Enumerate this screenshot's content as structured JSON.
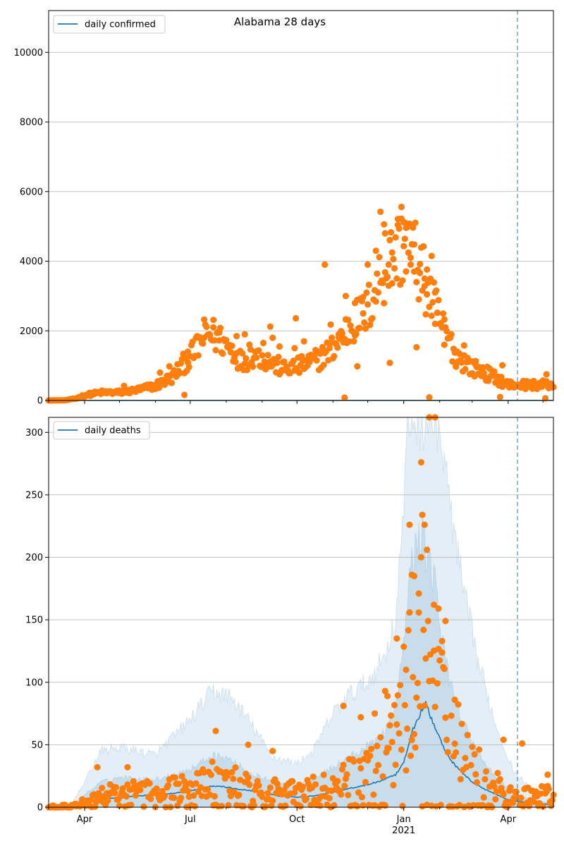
{
  "title": "Alabama 28 days",
  "x_axis": {
    "type": "date",
    "range": [
      "2020-03-01",
      "2021-05-10"
    ],
    "ticks": [
      {
        "date": "2020-04-01",
        "label": "Apr"
      },
      {
        "date": "2020-07-01",
        "label": "Jul"
      },
      {
        "date": "2020-10-01",
        "label": "Oct"
      },
      {
        "date": "2021-01-01",
        "label": "Jan",
        "sublabel": "2021"
      },
      {
        "date": "2021-04-01",
        "label": "Apr"
      }
    ],
    "minor_ticks_monthly": true
  },
  "colors": {
    "line": "#1f77b4",
    "points": "#ff7f0e",
    "band": "#1f77b4",
    "vline": "#1f77b4",
    "grid": "#b0b0b0"
  },
  "chart_data": [
    {
      "type": "scatter",
      "name": "confirmed",
      "legend": {
        "label": "daily confirmed",
        "placement": "upper-left"
      },
      "ylim": [
        0,
        11200
      ],
      "yticks": [
        0,
        2000,
        4000,
        6000,
        8000,
        10000
      ],
      "grid": "y",
      "vline_date": "2021-04-09",
      "line_series": {
        "name": "daily confirmed",
        "values_note": "",
        "keypoints": [
          [
            "2020-03-01",
            0
          ],
          [
            "2021-05-10",
            0
          ]
        ]
      },
      "point_keypoints": [
        [
          "2020-03-01",
          0
        ],
        [
          "2020-03-15",
          5
        ],
        [
          "2020-03-25",
          60
        ],
        [
          "2020-04-01",
          150
        ],
        [
          "2020-04-15",
          230
        ],
        [
          "2020-05-01",
          230
        ],
        [
          "2020-05-15",
          290
        ],
        [
          "2020-06-01",
          420
        ],
        [
          "2020-06-15",
          650
        ],
        [
          "2020-06-25",
          1050
        ],
        [
          "2020-07-05",
          1400
        ],
        [
          "2020-07-15",
          1950
        ],
        [
          "2020-07-25",
          1800
        ],
        [
          "2020-08-05",
          1500
        ],
        [
          "2020-08-15",
          1100
        ],
        [
          "2020-08-25",
          1350
        ],
        [
          "2020-09-05",
          1150
        ],
        [
          "2020-09-20",
          900
        ],
        [
          "2020-10-05",
          1000
        ],
        [
          "2020-10-20",
          1200
        ],
        [
          "2020-11-01",
          1500
        ],
        [
          "2020-11-15",
          2100
        ],
        [
          "2020-12-01",
          2600
        ],
        [
          "2020-12-10",
          3400
        ],
        [
          "2020-12-20",
          4000
        ],
        [
          "2021-01-01",
          4500
        ],
        [
          "2021-01-10",
          4200
        ],
        [
          "2021-01-20",
          3300
        ],
        [
          "2021-02-01",
          2300
        ],
        [
          "2021-02-15",
          1300
        ],
        [
          "2021-03-01",
          950
        ],
        [
          "2021-03-15",
          750
        ],
        [
          "2021-04-01",
          450
        ],
        [
          "2021-04-20",
          450
        ],
        [
          "2021-05-10",
          450
        ]
      ],
      "outliers": [
        [
          "2020-05-05",
          420
        ],
        [
          "2020-06-05",
          800
        ],
        [
          "2020-06-13",
          980
        ],
        [
          "2020-06-20",
          820
        ],
        [
          "2020-06-26",
          160
        ],
        [
          "2020-06-29",
          1400
        ],
        [
          "2020-07-13",
          1800
        ],
        [
          "2020-07-21",
          2100
        ],
        [
          "2020-07-26",
          1950
        ],
        [
          "2020-08-10",
          1850
        ],
        [
          "2020-08-17",
          1900
        ],
        [
          "2020-08-21",
          1600
        ],
        [
          "2020-09-02",
          1650
        ],
        [
          "2020-09-08",
          2120
        ],
        [
          "2020-09-10",
          1800
        ],
        [
          "2020-09-16",
          1550
        ],
        [
          "2020-09-29",
          1500
        ],
        [
          "2020-09-30",
          2360
        ],
        [
          "2020-10-07",
          1700
        ],
        [
          "2020-10-21",
          1400
        ],
        [
          "2020-10-25",
          3900
        ],
        [
          "2020-10-30",
          2180
        ],
        [
          "2020-11-06",
          1900
        ],
        [
          "2020-11-11",
          80
        ],
        [
          "2020-11-12",
          3000
        ],
        [
          "2020-11-20",
          2800
        ],
        [
          "2020-11-22",
          980
        ],
        [
          "2020-11-27",
          2500
        ],
        [
          "2020-12-01",
          3900
        ],
        [
          "2020-12-08",
          4300
        ],
        [
          "2020-12-12",
          5420
        ],
        [
          "2020-12-15",
          5060
        ],
        [
          "2020-12-16",
          4800
        ],
        [
          "2020-12-19",
          3900
        ],
        [
          "2020-12-20",
          1080
        ],
        [
          "2020-12-22",
          4250
        ],
        [
          "2020-12-27",
          5040
        ],
        [
          "2020-12-30",
          5560
        ],
        [
          "2021-01-01",
          5120
        ],
        [
          "2021-01-02",
          5110
        ],
        [
          "2021-01-03",
          4960
        ],
        [
          "2021-01-07",
          3900
        ],
        [
          "2021-01-10",
          3700
        ],
        [
          "2021-01-12",
          1530
        ],
        [
          "2021-01-15",
          3660
        ],
        [
          "2021-01-19",
          3500
        ],
        [
          "2021-01-21",
          3760
        ],
        [
          "2021-01-23",
          90
        ],
        [
          "2021-01-25",
          4150
        ],
        [
          "2021-01-28",
          2200
        ],
        [
          "2021-02-05",
          1600
        ],
        [
          "2021-02-15",
          1020
        ],
        [
          "2021-02-22",
          1580
        ],
        [
          "2021-03-04",
          1020
        ],
        [
          "2021-03-25",
          100
        ],
        [
          "2021-03-27",
          1010
        ],
        [
          "2021-05-03",
          60
        ],
        [
          "2021-05-04",
          750
        ]
      ]
    },
    {
      "type": "scatter",
      "name": "deaths",
      "legend": {
        "label": "daily deaths",
        "placement": "upper-left"
      },
      "ylim": [
        0,
        312
      ],
      "yticks": [
        0,
        50,
        100,
        150,
        200,
        250,
        300
      ],
      "grid": "y",
      "vline_date": "2021-04-09",
      "line_series": {
        "name": "daily deaths",
        "keypoints": [
          [
            "2020-03-01",
            0
          ],
          [
            "2020-03-20",
            0
          ],
          [
            "2020-04-01",
            3
          ],
          [
            "2020-04-15",
            6
          ],
          [
            "2020-05-01",
            8
          ],
          [
            "2020-05-15",
            9
          ],
          [
            "2020-06-01",
            10
          ],
          [
            "2020-06-15",
            11
          ],
          [
            "2020-07-01",
            13
          ],
          [
            "2020-07-15",
            16
          ],
          [
            "2020-07-25",
            17
          ],
          [
            "2020-08-01",
            16
          ],
          [
            "2020-08-15",
            14
          ],
          [
            "2020-09-01",
            12
          ],
          [
            "2020-09-15",
            9
          ],
          [
            "2020-10-01",
            8
          ],
          [
            "2020-10-15",
            9
          ],
          [
            "2020-11-01",
            12
          ],
          [
            "2020-11-15",
            15
          ],
          [
            "2020-12-01",
            18
          ],
          [
            "2020-12-15",
            22
          ],
          [
            "2020-12-25",
            26
          ],
          [
            "2021-01-01",
            35
          ],
          [
            "2021-01-08",
            60
          ],
          [
            "2021-01-15",
            75
          ],
          [
            "2021-01-20",
            83
          ],
          [
            "2021-01-25",
            70
          ],
          [
            "2021-02-01",
            55
          ],
          [
            "2021-02-10",
            38
          ],
          [
            "2021-02-20",
            28
          ],
          [
            "2021-03-01",
            20
          ],
          [
            "2021-03-15",
            13
          ],
          [
            "2021-04-01",
            6
          ],
          [
            "2021-04-15",
            4
          ],
          [
            "2021-05-10",
            2
          ]
        ]
      },
      "band_outer": [
        [
          "2020-03-01",
          0
        ],
        [
          "2020-03-20",
          2
        ],
        [
          "2020-04-01",
          20
        ],
        [
          "2020-04-15",
          45
        ],
        [
          "2020-05-01",
          48
        ],
        [
          "2020-06-01",
          42
        ],
        [
          "2020-07-01",
          70
        ],
        [
          "2020-07-20",
          93
        ],
        [
          "2020-08-05",
          88
        ],
        [
          "2020-08-20",
          70
        ],
        [
          "2020-09-10",
          40
        ],
        [
          "2020-10-01",
          35
        ],
        [
          "2020-10-15",
          45
        ],
        [
          "2020-11-01",
          75
        ],
        [
          "2020-11-15",
          90
        ],
        [
          "2020-12-01",
          100
        ],
        [
          "2020-12-15",
          120
        ],
        [
          "2020-12-25",
          150
        ],
        [
          "2021-01-01",
          240
        ],
        [
          "2021-01-05",
          312
        ],
        [
          "2021-01-30",
          312
        ],
        [
          "2021-02-10",
          240
        ],
        [
          "2021-02-20",
          180
        ],
        [
          "2021-03-05",
          120
        ],
        [
          "2021-03-20",
          70
        ],
        [
          "2021-04-05",
          30
        ],
        [
          "2021-04-20",
          15
        ],
        [
          "2021-05-10",
          8
        ]
      ],
      "band_inner": [
        [
          "2020-03-01",
          0
        ],
        [
          "2020-03-20",
          1
        ],
        [
          "2020-04-01",
          10
        ],
        [
          "2020-04-15",
          20
        ],
        [
          "2020-05-01",
          24
        ],
        [
          "2020-06-01",
          22
        ],
        [
          "2020-07-01",
          30
        ],
        [
          "2020-07-20",
          42
        ],
        [
          "2020-08-05",
          38
        ],
        [
          "2020-08-20",
          28
        ],
        [
          "2020-09-10",
          20
        ],
        [
          "2020-10-01",
          18
        ],
        [
          "2020-10-15",
          22
        ],
        [
          "2020-11-01",
          32
        ],
        [
          "2020-11-15",
          40
        ],
        [
          "2020-12-01",
          48
        ],
        [
          "2020-12-15",
          60
        ],
        [
          "2020-12-25",
          78
        ],
        [
          "2021-01-01",
          130
        ],
        [
          "2021-01-08",
          200
        ],
        [
          "2021-01-18",
          215
        ],
        [
          "2021-01-28",
          180
        ],
        [
          "2021-02-05",
          120
        ],
        [
          "2021-02-20",
          70
        ],
        [
          "2021-03-05",
          45
        ],
        [
          "2021-03-20",
          25
        ],
        [
          "2021-04-05",
          12
        ],
        [
          "2021-04-20",
          6
        ],
        [
          "2021-05-10",
          3
        ]
      ],
      "point_keypoints": [
        [
          "2020-03-01",
          0
        ],
        [
          "2020-03-20",
          0
        ],
        [
          "2020-04-01",
          5
        ],
        [
          "2020-04-15",
          10
        ],
        [
          "2020-05-01",
          12
        ],
        [
          "2020-06-01",
          13
        ],
        [
          "2020-07-01",
          16
        ],
        [
          "2020-07-20",
          22
        ],
        [
          "2020-08-05",
          20
        ],
        [
          "2020-09-01",
          15
        ],
        [
          "2020-10-01",
          12
        ],
        [
          "2020-11-01",
          18
        ],
        [
          "2020-12-01",
          28
        ],
        [
          "2020-12-20",
          45
        ],
        [
          "2021-01-01",
          80
        ],
        [
          "2021-01-15",
          120
        ],
        [
          "2021-01-25",
          110
        ],
        [
          "2021-02-05",
          70
        ],
        [
          "2021-02-20",
          45
        ],
        [
          "2021-03-05",
          30
        ],
        [
          "2021-03-20",
          18
        ],
        [
          "2021-04-05",
          10
        ],
        [
          "2021-05-10",
          10
        ]
      ],
      "outliers": [
        [
          "2020-04-12",
          32
        ],
        [
          "2020-05-08",
          32
        ],
        [
          "2020-07-23",
          61
        ],
        [
          "2020-08-20",
          50
        ],
        [
          "2020-09-10",
          45
        ],
        [
          "2020-11-10",
          81
        ],
        [
          "2020-11-25",
          72
        ],
        [
          "2020-12-07",
          75
        ],
        [
          "2020-12-16",
          93
        ],
        [
          "2020-12-18",
          89
        ],
        [
          "2020-12-26",
          135
        ],
        [
          "2021-01-03",
          110
        ],
        [
          "2021-01-06",
          226
        ],
        [
          "2021-01-08",
          186
        ],
        [
          "2021-01-10",
          185
        ],
        [
          "2021-01-14",
          171
        ],
        [
          "2021-01-16",
          276
        ],
        [
          "2021-01-17",
          234
        ],
        [
          "2021-01-19",
          226
        ],
        [
          "2021-01-21",
          206
        ],
        [
          "2021-01-23",
          312
        ],
        [
          "2021-01-28",
          312
        ],
        [
          "2021-01-27",
          162
        ],
        [
          "2021-01-31",
          159
        ],
        [
          "2021-02-03",
          133
        ],
        [
          "2021-02-06",
          149
        ],
        [
          "2021-02-14",
          86
        ],
        [
          "2021-03-28",
          54
        ],
        [
          "2021-04-13",
          51
        ],
        [
          "2021-05-05",
          26
        ]
      ]
    }
  ]
}
